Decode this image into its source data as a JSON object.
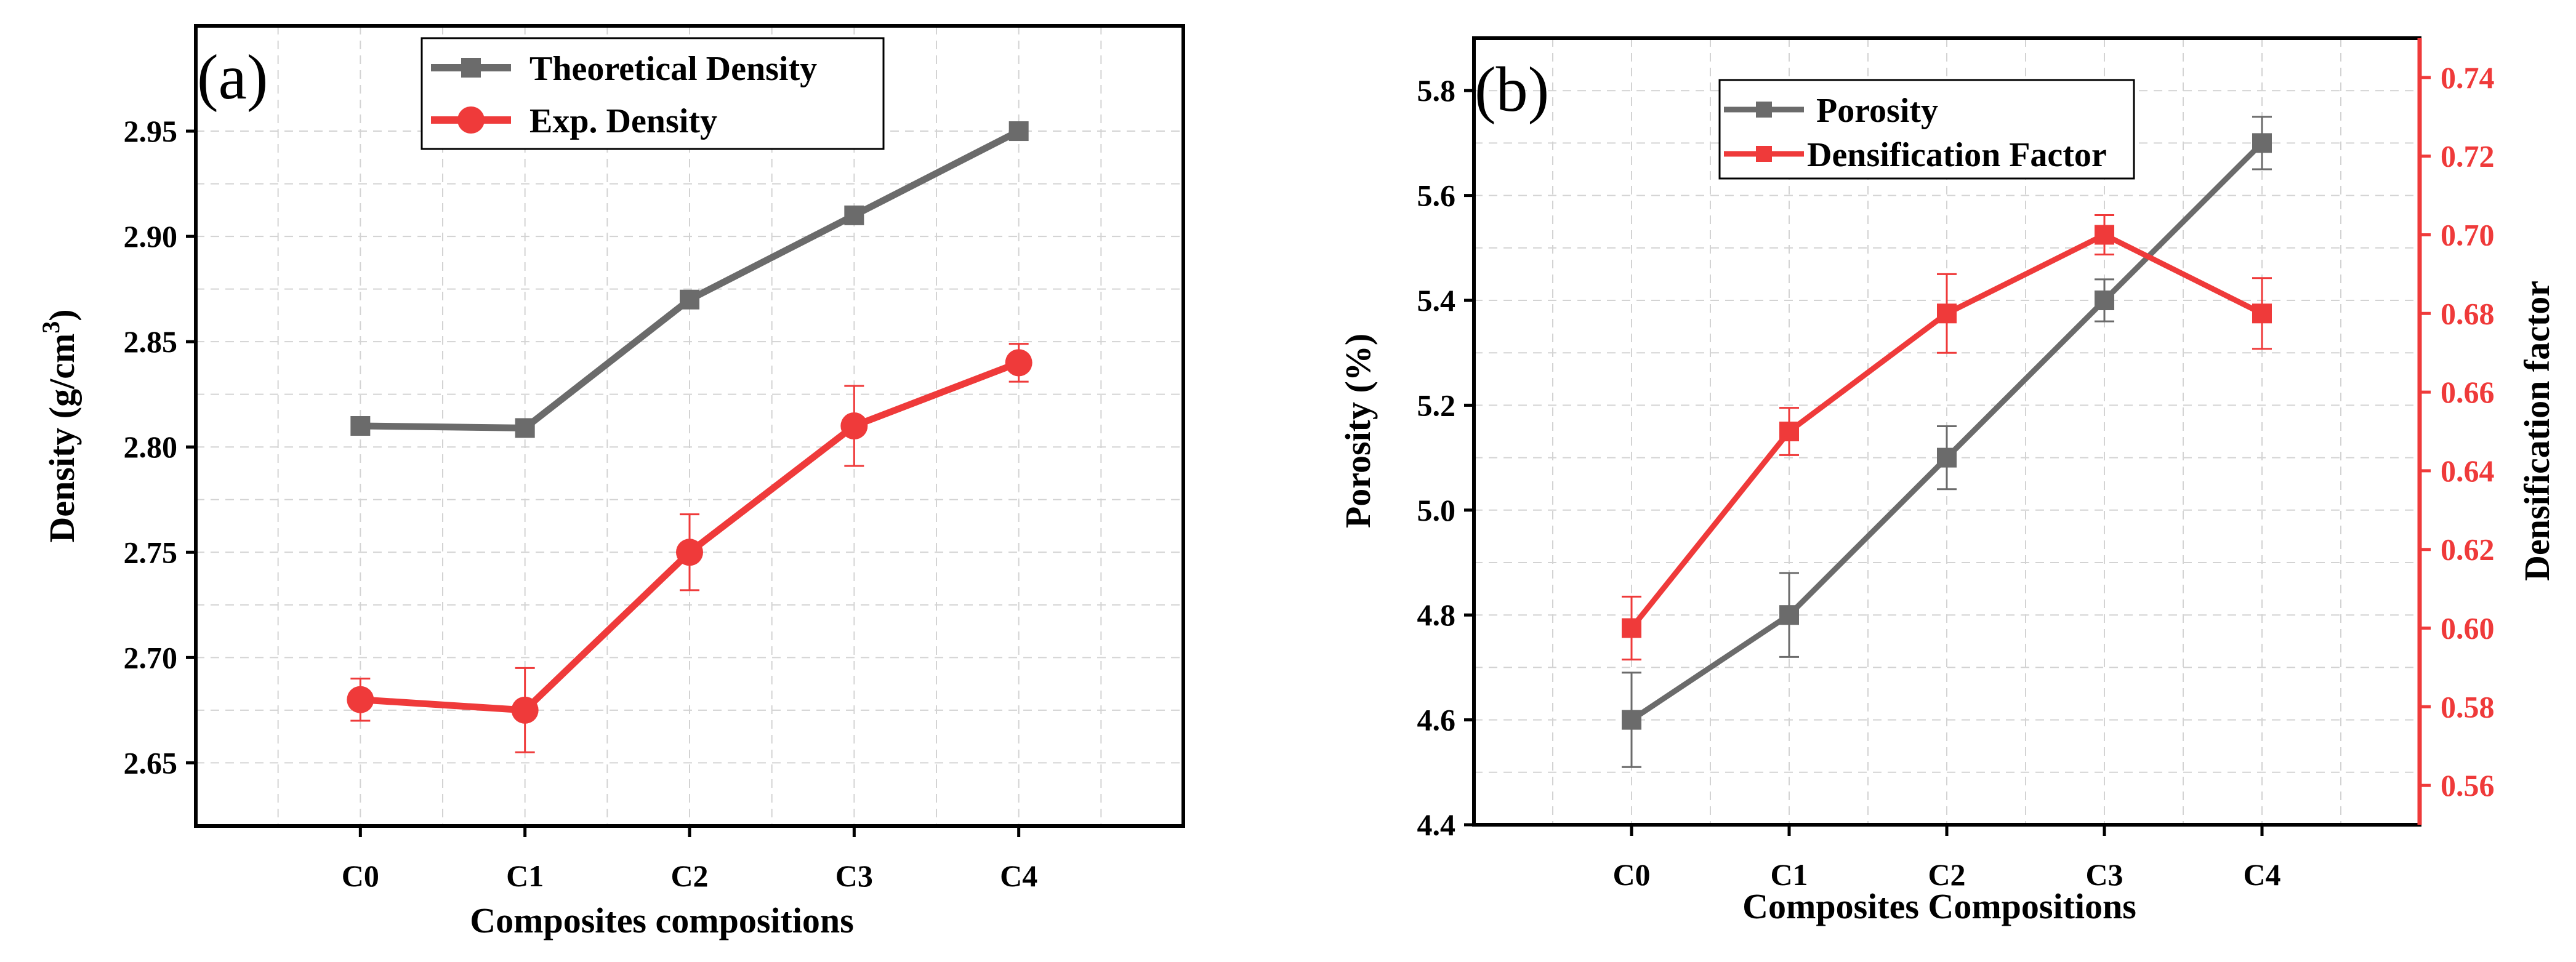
{
  "chart_data": [
    {
      "type": "line",
      "panel_label": "(a)",
      "title": "",
      "xlabel": "Composites compositions",
      "ylabel": "Density (g/cm",
      "ylabel_sup": "3",
      "ylabel_end": ")",
      "categories": [
        "C0",
        "C1",
        "C2",
        "C3",
        "C4"
      ],
      "ylim": [
        2.62,
        3.0
      ],
      "yticks": [
        2.65,
        2.7,
        2.75,
        2.8,
        2.85,
        2.9,
        2.95
      ],
      "ytick_labels": [
        "2.65",
        "2.70",
        "2.75",
        "2.80",
        "2.85",
        "2.90",
        "2.95"
      ],
      "grid": true,
      "legend_position": "top-center",
      "series": [
        {
          "name": "Theoretical Density",
          "color": "#6b6b6b",
          "marker": "square",
          "values": [
            2.81,
            2.809,
            2.87,
            2.91,
            2.95
          ],
          "errors": [
            0,
            0,
            0,
            0,
            0
          ]
        },
        {
          "name": "Exp. Density",
          "color": "#ef3a3a",
          "marker": "circle",
          "values": [
            2.68,
            2.675,
            2.75,
            2.81,
            2.84
          ],
          "errors": [
            0.01,
            0.02,
            0.018,
            0.019,
            0.009
          ]
        }
      ]
    },
    {
      "type": "line",
      "panel_label": "(b)",
      "title": "",
      "xlabel": "Composites Compositions",
      "ylabel": "Porosity (%)",
      "y2label": "Densification factor",
      "categories": [
        "C0",
        "C1",
        "C2",
        "C3",
        "C4"
      ],
      "ylim": [
        4.4,
        5.9
      ],
      "yticks": [
        4.4,
        4.6,
        4.8,
        5.0,
        5.2,
        5.4,
        5.6,
        5.8
      ],
      "ytick_labels": [
        "4.4",
        "4.6",
        "4.8",
        "5.0",
        "5.2",
        "5.4",
        "5.6",
        "5.8"
      ],
      "y2lim": [
        0.55,
        0.75
      ],
      "y2ticks": [
        0.56,
        0.58,
        0.6,
        0.62,
        0.64,
        0.66,
        0.68,
        0.7,
        0.72,
        0.74
      ],
      "y2tick_labels": [
        "0.56",
        "0.58",
        "0.60",
        "0.62",
        "0.64",
        "0.66",
        "0.68",
        "0.70",
        "0.72",
        "0.74"
      ],
      "grid": true,
      "legend_position": "top-center",
      "series": [
        {
          "name": "Porosity",
          "axis": "left",
          "color": "#6b6b6b",
          "marker": "square",
          "values": [
            4.6,
            4.8,
            5.1,
            5.4,
            5.7
          ],
          "errors": [
            0.09,
            0.08,
            0.06,
            0.04,
            0.05
          ]
        },
        {
          "name": "Densification Factor",
          "axis": "right",
          "color": "#ef3a3a",
          "marker": "square",
          "values": [
            0.6,
            0.65,
            0.68,
            0.7,
            0.68
          ],
          "errors": [
            0.008,
            0.006,
            0.01,
            0.005,
            0.009
          ]
        }
      ]
    }
  ]
}
